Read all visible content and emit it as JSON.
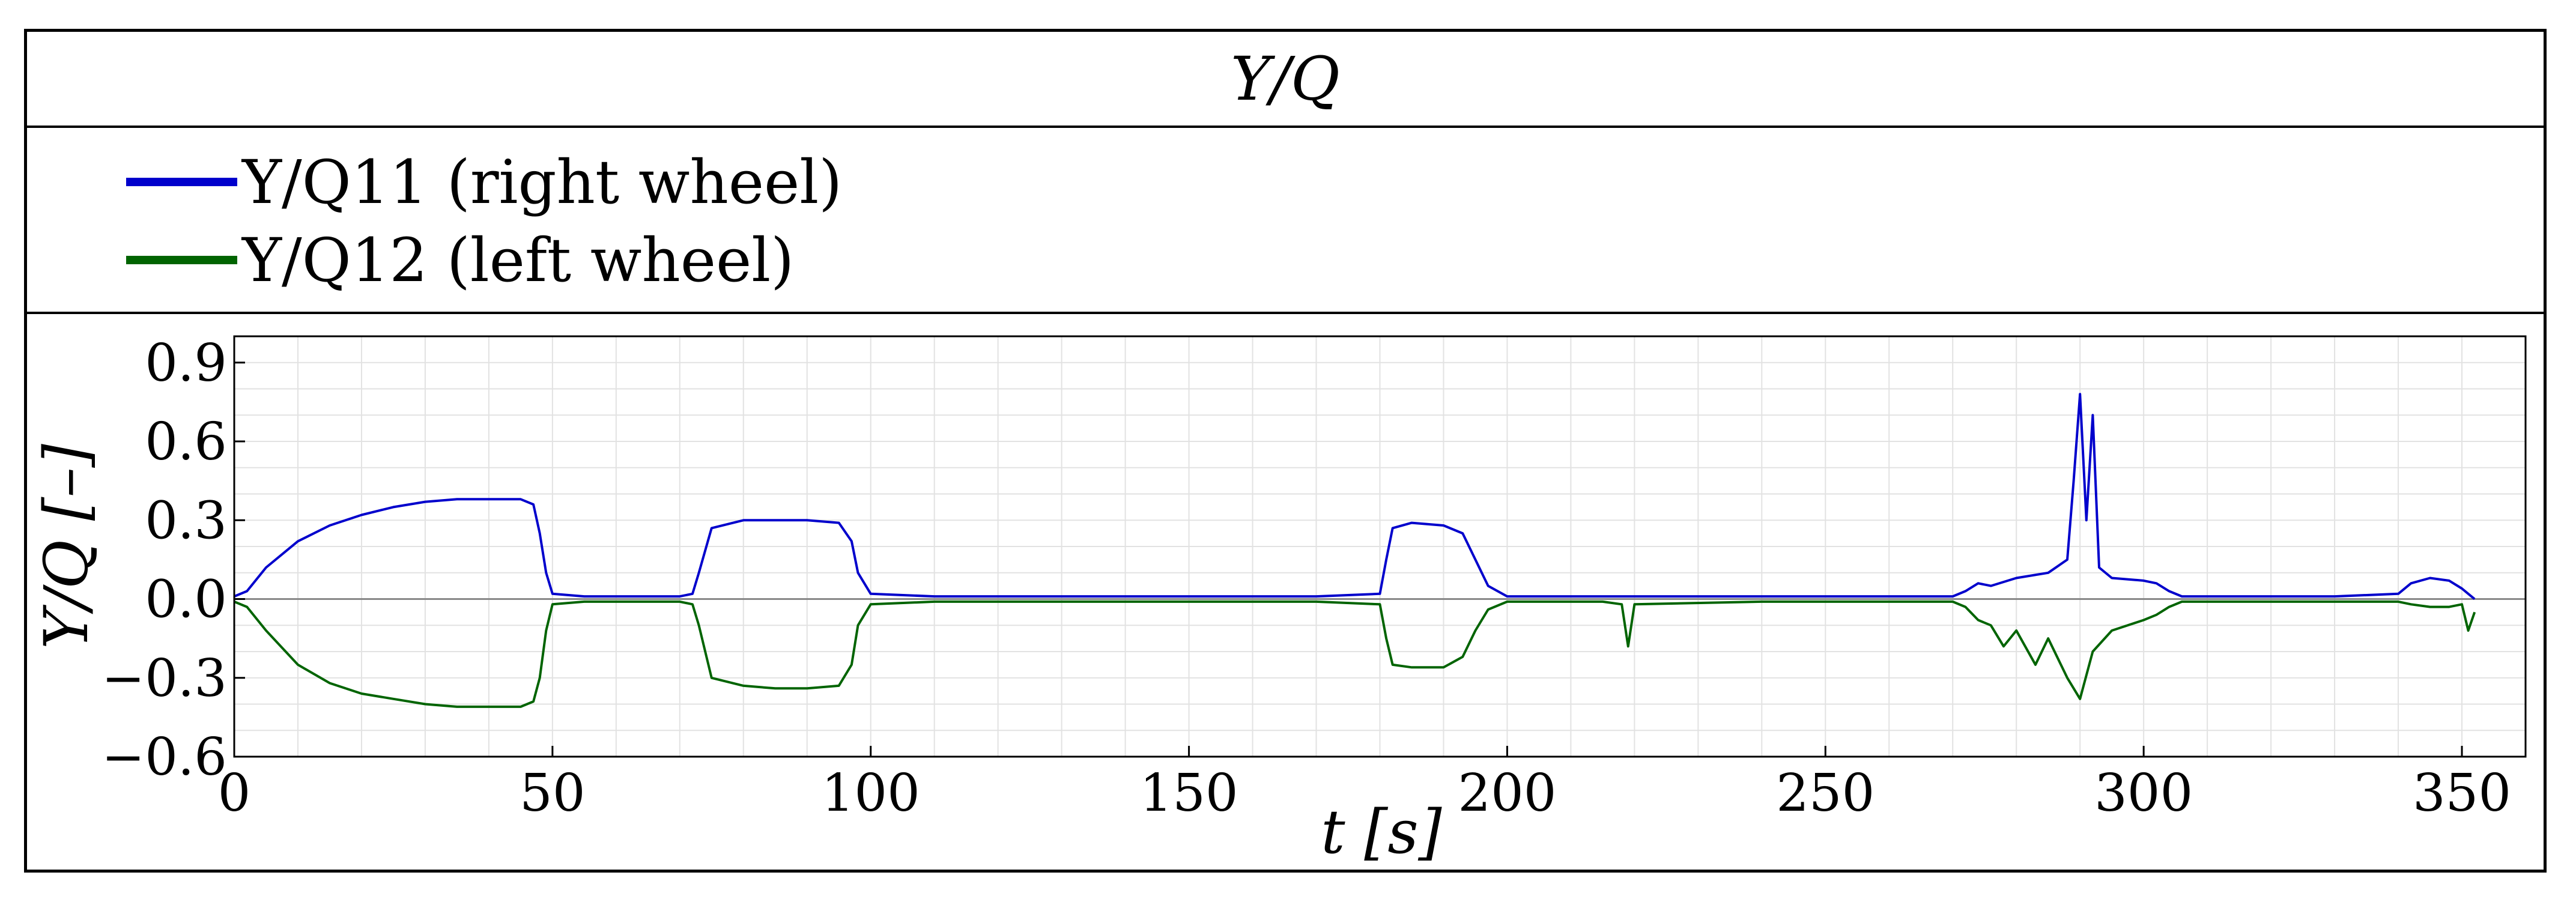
{
  "chart_data": {
    "type": "line",
    "title": "Y/Q",
    "xlabel": "t [s]",
    "ylabel": "Y/Q [–]",
    "xlim": [
      0,
      360
    ],
    "ylim": [
      -0.6,
      1.0
    ],
    "x_ticks": [
      0,
      50,
      100,
      150,
      200,
      250,
      300,
      350
    ],
    "x_tick_labels": [
      "0",
      "50",
      "100",
      "150",
      "200",
      "250",
      "300",
      "350"
    ],
    "y_ticks": [
      -0.6,
      -0.3,
      0.0,
      0.3,
      0.6,
      0.9
    ],
    "y_tick_labels": [
      "−0.6",
      "−0.3",
      "0.0",
      "0.3",
      "0.6",
      "0.9"
    ],
    "grid": true,
    "legend_position": "top-left",
    "series": [
      {
        "name": "Y/Q11 (right wheel)",
        "color": "#0000cc",
        "x": [
          0,
          2,
          5,
          10,
          15,
          20,
          25,
          30,
          35,
          40,
          45,
          47,
          48,
          49,
          50,
          55,
          60,
          65,
          70,
          72,
          73,
          75,
          80,
          85,
          90,
          95,
          97,
          98,
          100,
          110,
          120,
          130,
          140,
          150,
          160,
          170,
          180,
          181,
          182,
          185,
          190,
          193,
          195,
          197,
          200,
          220,
          240,
          260,
          270,
          272,
          274,
          276,
          280,
          285,
          288,
          289,
          290,
          291,
          292,
          293,
          295,
          300,
          302,
          304,
          306,
          310,
          320,
          330,
          340,
          342,
          345,
          348,
          350,
          351,
          352
        ],
        "values": [
          0.01,
          0.03,
          0.12,
          0.22,
          0.28,
          0.32,
          0.35,
          0.37,
          0.38,
          0.38,
          0.38,
          0.36,
          0.25,
          0.1,
          0.02,
          0.01,
          0.01,
          0.01,
          0.01,
          0.02,
          0.1,
          0.27,
          0.3,
          0.3,
          0.3,
          0.29,
          0.22,
          0.1,
          0.02,
          0.01,
          0.01,
          0.01,
          0.01,
          0.01,
          0.01,
          0.01,
          0.02,
          0.15,
          0.27,
          0.29,
          0.28,
          0.25,
          0.15,
          0.05,
          0.01,
          0.01,
          0.01,
          0.01,
          0.01,
          0.03,
          0.06,
          0.05,
          0.08,
          0.1,
          0.15,
          0.45,
          0.78,
          0.3,
          0.7,
          0.12,
          0.08,
          0.07,
          0.06,
          0.03,
          0.01,
          0.01,
          0.01,
          0.01,
          0.02,
          0.06,
          0.08,
          0.07,
          0.04,
          0.02,
          0.0
        ]
      },
      {
        "name": "Y/Q12 (left wheel)",
        "color": "#006400",
        "x": [
          0,
          2,
          5,
          10,
          15,
          20,
          25,
          30,
          35,
          40,
          45,
          47,
          48,
          49,
          50,
          55,
          60,
          65,
          70,
          72,
          73,
          75,
          80,
          85,
          90,
          95,
          97,
          98,
          100,
          110,
          120,
          130,
          140,
          150,
          160,
          170,
          180,
          181,
          182,
          185,
          190,
          193,
          195,
          197,
          200,
          215,
          218,
          219,
          220,
          240,
          260,
          270,
          272,
          274,
          276,
          278,
          280,
          283,
          285,
          288,
          290,
          292,
          295,
          300,
          302,
          304,
          306,
          310,
          320,
          330,
          340,
          342,
          345,
          348,
          350,
          351,
          352
        ],
        "values": [
          -0.01,
          -0.03,
          -0.12,
          -0.25,
          -0.32,
          -0.36,
          -0.38,
          -0.4,
          -0.41,
          -0.41,
          -0.41,
          -0.39,
          -0.3,
          -0.12,
          -0.02,
          -0.01,
          -0.01,
          -0.01,
          -0.01,
          -0.02,
          -0.1,
          -0.3,
          -0.33,
          -0.34,
          -0.34,
          -0.33,
          -0.25,
          -0.1,
          -0.02,
          -0.01,
          -0.01,
          -0.01,
          -0.01,
          -0.01,
          -0.01,
          -0.01,
          -0.02,
          -0.15,
          -0.25,
          -0.26,
          -0.26,
          -0.22,
          -0.12,
          -0.04,
          -0.01,
          -0.01,
          -0.02,
          -0.18,
          -0.02,
          -0.01,
          -0.01,
          -0.01,
          -0.03,
          -0.08,
          -0.1,
          -0.18,
          -0.12,
          -0.25,
          -0.15,
          -0.3,
          -0.38,
          -0.2,
          -0.12,
          -0.08,
          -0.06,
          -0.03,
          -0.01,
          -0.01,
          -0.01,
          -0.01,
          -0.01,
          -0.02,
          -0.03,
          -0.03,
          -0.02,
          -0.12,
          -0.05
        ]
      }
    ]
  }
}
